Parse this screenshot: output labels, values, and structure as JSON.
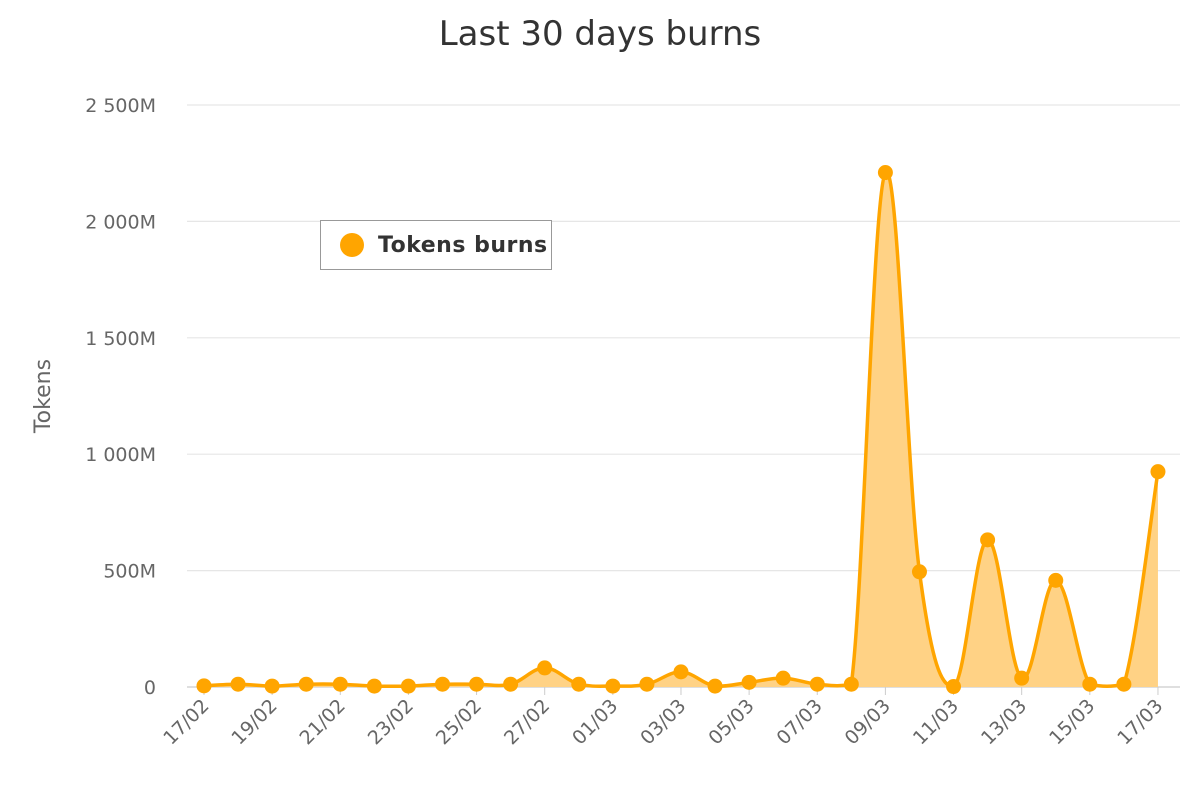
{
  "chart_data": {
    "type": "area",
    "title": "Last 30 days burns",
    "ylabel": "Tokens",
    "xlabel": "",
    "ylim": [
      0,
      2500
    ],
    "y_unit": "M",
    "y_ticks": [
      {
        "value": 0,
        "label": "0"
      },
      {
        "value": 500,
        "label": "500M"
      },
      {
        "value": 1000,
        "label": "1 000M"
      },
      {
        "value": 1500,
        "label": "1 500M"
      },
      {
        "value": 2000,
        "label": "2 000M"
      },
      {
        "value": 2500,
        "label": "2 500M"
      }
    ],
    "x": [
      "17/02",
      "18/02",
      "19/02",
      "20/02",
      "21/02",
      "22/02",
      "23/02",
      "24/02",
      "25/02",
      "26/02",
      "27/02",
      "28/02",
      "01/03",
      "02/03",
      "03/03",
      "04/03",
      "05/03",
      "06/03",
      "07/03",
      "08/03",
      "09/03",
      "10/03",
      "11/03",
      "12/03",
      "13/03",
      "14/03",
      "15/03",
      "16/03",
      "17/03"
    ],
    "x_tick_labels": [
      "17/02",
      "19/02",
      "21/02",
      "23/02",
      "25/02",
      "27/02",
      "01/03",
      "03/03",
      "05/03",
      "07/03",
      "09/03",
      "11/03",
      "13/03",
      "15/03",
      "17/03"
    ],
    "series": [
      {
        "name": "Tokens burns",
        "color": "#FFA500",
        "fill": "#FFD285",
        "values": [
          5,
          12,
          4,
          12,
          12,
          4,
          4,
          12,
          12,
          12,
          82,
          12,
          4,
          12,
          65,
          4,
          20,
          38,
          12,
          12,
          2210,
          495,
          2,
          632,
          38,
          458,
          12,
          12,
          925
        ]
      }
    ],
    "grid": true,
    "legend_position": "top-left"
  }
}
